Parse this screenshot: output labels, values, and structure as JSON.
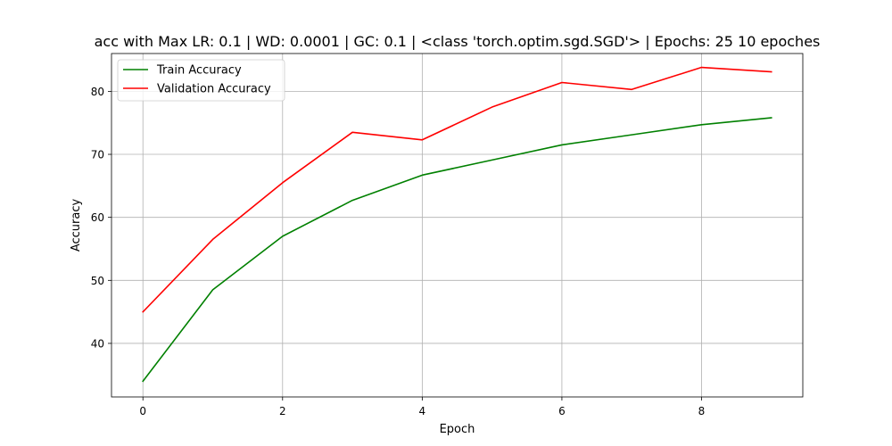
{
  "chart_data": {
    "type": "line",
    "title": "acc with Max LR: 0.1 | WD: 0.0001 | GC: 0.1 | <class 'torch.optim.sgd.SGD'> | Epochs: 25 10 epoches",
    "xlabel": "Epoch",
    "ylabel": "Accuracy",
    "x": [
      0,
      1,
      2,
      3,
      4,
      5,
      6,
      7,
      8,
      9
    ],
    "xlim": [
      -0.45,
      9.45
    ],
    "ylim": [
      31.5,
      86.0
    ],
    "xticks": [
      0,
      2,
      4,
      6,
      8
    ],
    "yticks": [
      40,
      50,
      60,
      70,
      80
    ],
    "grid": true,
    "legend_position": "top-left",
    "series": [
      {
        "name": "Train Accuracy",
        "color": "#008000",
        "values": [
          34.0,
          48.5,
          57.0,
          62.7,
          66.7,
          69.1,
          71.5,
          73.1,
          74.7,
          75.8
        ]
      },
      {
        "name": "Validation Accuracy",
        "color": "#ff0000",
        "values": [
          45.0,
          56.5,
          65.5,
          73.5,
          72.3,
          77.5,
          81.4,
          80.3,
          83.8,
          83.1
        ]
      }
    ]
  }
}
